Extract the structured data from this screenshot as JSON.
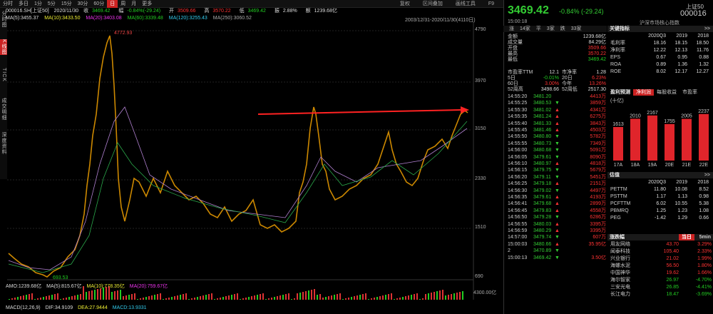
{
  "toolbar": {
    "tabs": [
      "分时",
      "多日",
      "1分",
      "5分",
      "15分",
      "30分",
      "60分",
      "日",
      "周",
      "月",
      "更多"
    ],
    "active_index": 7,
    "right": [
      "复权",
      "区间叠加",
      "画线工具",
      "F9"
    ]
  },
  "info": {
    "symbol": "000016.SH[上证50]",
    "date": "2020/11/30",
    "close_label": "收",
    "close": "3469.42",
    "change_label": "幅",
    "change": "-0.84%(-29.24)",
    "open_label": "开",
    "open": "3509.66",
    "high_label": "高",
    "high": "3570.22",
    "low_label": "低",
    "low": "3469.42",
    "amp_label": "振",
    "amp": "2.88%",
    "amount_label": "额",
    "amount": "1239.68亿"
  },
  "ma": {
    "ma5": "MA(5):3455.37",
    "ma10": "MA(10):3433.50",
    "ma20": "MA(20):3403.08",
    "ma60": "MA(60):3339.48",
    "ma120": "MA(120):3255.43",
    "ma250": "MA(250):3060.52"
  },
  "range": "2003/12/31-2020/11/30(4110日)",
  "left_vertical": [
    "分时图",
    "K线图",
    "TICK",
    "成交明细",
    "深度资料"
  ],
  "y_ticks": [
    "4790",
    "3970",
    "3150",
    "2330",
    "1510",
    "690"
  ],
  "peak_label": "4772.93",
  "trough_label": "693.53",
  "amo": {
    "amo": "AMO:1239.68亿",
    "ma5": "MA(5):815.67亿",
    "ma10": "MA(10):778.35亿",
    "ma20": "MA(20):759.67亿"
  },
  "amo_tick": "4300.00亿",
  "macd": {
    "name": "MACD(12,26,9)",
    "dif": "DIF:34.9109",
    "dea": "DEA:27.9444",
    "macd": "MACD:13.9331"
  },
  "quote": {
    "price": "3469.42",
    "change": "-0.84% (-29.24)",
    "name": "上证50",
    "code": "000016",
    "time": "15:00:18",
    "index_name": "沪深市场核心指数",
    "bar": [
      "涨",
      "14家",
      "平",
      "3家",
      "跌",
      "33家"
    ],
    "rows": [
      {
        "k": "金额",
        "v": "1239.68亿",
        "c": "white"
      },
      {
        "k": "成交量",
        "v": "84.29亿",
        "c": "white"
      },
      {
        "k": "开盘",
        "v": "3509.66",
        "c": "red"
      },
      {
        "k": "最高",
        "v": "3570.22",
        "c": "red"
      },
      {
        "k": "最低",
        "v": "3469.42",
        "c": "green"
      }
    ],
    "pe_line": {
      "k1": "市盈率TTM",
      "v1": "12.1",
      "k2": "市净率",
      "v2": "1.28"
    },
    "d5": {
      "k1": "5日",
      "v1": "-0.01%",
      "k2": "20日",
      "v2": "6.23%"
    },
    "d60": {
      "k1": "60日",
      "v1": "3.00%",
      "k2": "今年",
      "v2": "13.26%"
    },
    "w52": {
      "k1": "52周高",
      "v1": "3498.66",
      "k2": "52周低",
      "v2": "2517.30"
    }
  },
  "ticks": [
    {
      "t": "14:55:20",
      "p": "3481.20",
      "a": "",
      "v": "4413万"
    },
    {
      "t": "14:55:25",
      "p": "3480.53",
      "a": "▼",
      "v": "3859万"
    },
    {
      "t": "14:55:30",
      "p": "3481.02",
      "a": "▲",
      "v": "4341万"
    },
    {
      "t": "14:55:35",
      "p": "3481.24",
      "a": "▲",
      "v": "6275万"
    },
    {
      "t": "14:55:40",
      "p": "3481.33",
      "a": "▲",
      "v": "3843万"
    },
    {
      "t": "14:55:45",
      "p": "3481.46",
      "a": "▲",
      "v": "4503万"
    },
    {
      "t": "14:55:50",
      "p": "3480.80",
      "a": "▼",
      "v": "5782万"
    },
    {
      "t": "14:55:55",
      "p": "3480.73",
      "a": "▼",
      "v": "7349万"
    },
    {
      "t": "14:56:00",
      "p": "3480.68",
      "a": "▼",
      "v": "5091万"
    },
    {
      "t": "14:56:05",
      "p": "3479.61",
      "a": "▼",
      "v": "8090万"
    },
    {
      "t": "14:56:10",
      "p": "3480.97",
      "a": "▲",
      "v": "4818万"
    },
    {
      "t": "14:56:15",
      "p": "3479.75",
      "a": "▼",
      "v": "5679万"
    },
    {
      "t": "14:56:20",
      "p": "3479.11",
      "a": "▼",
      "v": "5451万"
    },
    {
      "t": "14:56:25",
      "p": "3479.18",
      "a": "▲",
      "v": "2151万"
    },
    {
      "t": "14:56:30",
      "p": "3479.02",
      "a": "▼",
      "v": "4497万"
    },
    {
      "t": "14:56:35",
      "p": "3479.61",
      "a": "▲",
      "v": "4193万"
    },
    {
      "t": "14:56:41",
      "p": "3479.68",
      "a": "▲",
      "v": "2899万"
    },
    {
      "t": "14:56:45",
      "p": "3479.83",
      "a": "▲",
      "v": "4558万"
    },
    {
      "t": "14:56:50",
      "p": "3479.28",
      "a": "▼",
      "v": "6286万"
    },
    {
      "t": "14:56:55",
      "p": "3480.03",
      "a": "▲",
      "v": "3395万"
    },
    {
      "t": "14:56:59",
      "p": "3480.29",
      "a": "▲",
      "v": "3395万"
    },
    {
      "t": "14:57:00",
      "p": "3479.74",
      "a": "▼",
      "v": "607万"
    },
    {
      "t": "15:00:03",
      "p": "3480.66",
      "a": "▲",
      "v": "35.95亿"
    },
    {
      "t": "2",
      "p": "3470.89",
      "a": "▼",
      "v": ""
    },
    {
      "t": "15:00:13",
      "p": "3469.42",
      "a": "▼",
      "v": "3.50亿"
    }
  ],
  "fin": {
    "title": "关键指标",
    "arrow": ">>",
    "cols": [
      "2020Q3",
      "2019",
      "2018"
    ],
    "rows": [
      {
        "k": "毛利率",
        "v": [
          "18.16",
          "18.15",
          "18.50"
        ]
      },
      {
        "k": "净利率",
        "v": [
          "12.22",
          "12.13",
          "11.76"
        ]
      },
      {
        "k": "EPS",
        "v": [
          "0.67",
          "0.95",
          "0.88"
        ]
      },
      {
        "k": "ROA",
        "v": [
          "0.89",
          "1.36",
          "1.32"
        ]
      },
      {
        "k": "ROE",
        "v": [
          "8.02",
          "12.17",
          "12.27"
        ]
      }
    ]
  },
  "profit_tabs": [
    "盈利预测",
    "净利润",
    "每股收益",
    "市盈率"
  ],
  "profit_unit": "(十亿)",
  "chart_data": {
    "type": "bar",
    "categories": [
      "17A",
      "18A",
      "19A",
      "20E",
      "21E",
      "22E"
    ],
    "values": [
      1613,
      2010,
      2167,
      1755,
      2005,
      2237
    ],
    "title": "盈利预测 净利润",
    "ylabel": "(十亿)",
    "color": "#e0252b"
  },
  "val": {
    "title": "估值",
    "arrow": ">>",
    "cols": [
      "2020Q3",
      "2019",
      "2018"
    ],
    "rows": [
      {
        "k": "PETTM",
        "v": [
          "11.80",
          "10.08",
          "8.52"
        ]
      },
      {
        "k": "PSTTM",
        "v": [
          "1.17",
          "1.13",
          "0.98"
        ]
      },
      {
        "k": "PCFTTM",
        "v": [
          "6.02",
          "10.55",
          "5.38"
        ]
      },
      {
        "k": "PBMRQ",
        "v": [
          "1.25",
          "1.23",
          "1.08"
        ]
      },
      {
        "k": "PEG",
        "v": [
          "-1.42",
          "1.29",
          "0.66"
        ]
      }
    ]
  },
  "movers": {
    "title": "涨跌幅",
    "tab1": "当日",
    "tab2": "5min",
    "rows": [
      {
        "n": "用友网络",
        "p": "43.70",
        "c": "3.29%",
        "up": true
      },
      {
        "n": "闻泰科技",
        "p": "105.40",
        "c": "2.33%",
        "up": true
      },
      {
        "n": "兴业银行",
        "p": "21.02",
        "c": "1.99%",
        "up": true
      },
      {
        "n": "海螺水泥",
        "p": "56.50",
        "c": "1.80%",
        "up": true
      },
      {
        "n": "中国神华",
        "p": "19.62",
        "c": "1.66%",
        "up": true
      },
      {
        "n": "海尔智家",
        "p": "26.97",
        "c": "-4.70%",
        "up": false
      },
      {
        "n": "三安光电",
        "p": "26.85",
        "c": "-4.41%",
        "up": false
      },
      {
        "n": "长江电力",
        "p": "18.47",
        "c": "-3.69%",
        "up": false
      }
    ]
  }
}
